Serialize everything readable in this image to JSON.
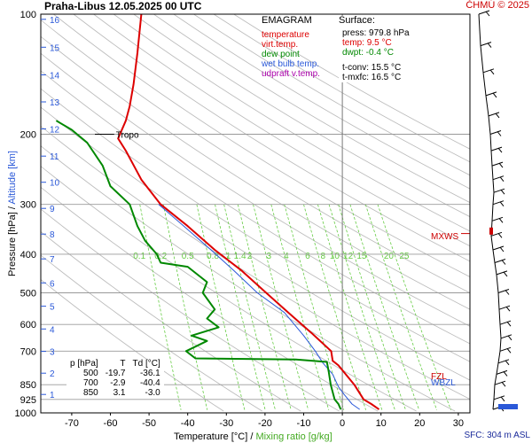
{
  "title": "Praha-Libus    12.05.2025 00 UTC",
  "credit": "ČHMÚ © 2025",
  "legend": {
    "header": "EMAGRAM",
    "items": [
      {
        "label": "temperature",
        "color": "#dd0000"
      },
      {
        "label": "virt.temp.",
        "color": "#dd0000"
      },
      {
        "label": "dew point",
        "color": "#008800"
      },
      {
        "label": "wet bulb temp.",
        "color": "#2a58d8"
      },
      {
        "label": "udpraft v.temp.",
        "color": "#aa00aa"
      }
    ]
  },
  "surface": {
    "header": "Surface:",
    "press": "press: 979.8 hPa",
    "temp": "temp: 9.5 °C",
    "dwpt": "dwpt: -0.4 °C",
    "tconv": "t-conv: 15.5 °C",
    "tmxfc": "t-mxfc: 16.5 °C"
  },
  "table": {
    "header": [
      "p [hPa]",
      "T",
      "Td [°C]"
    ],
    "rows": [
      [
        "500",
        "-19.7",
        "-36.1"
      ],
      [
        "700",
        "-2.9",
        "-40.4"
      ],
      [
        "850",
        "3.1",
        "-3.0"
      ]
    ]
  },
  "axis_labels": {
    "pressure": "Pressure [hPa]",
    "sep": "/",
    "altitude": "Altitude [km]",
    "temperature": "Temperature [°C]",
    "slash": "/",
    "mixing": "Mixing ratio [g/kg]"
  },
  "annotations": {
    "tropo": "Tropo",
    "mxws": "MXWS",
    "fzl": "FZL",
    "wbzl": "WBZL",
    "sfc": "SFC: 304 m ASL"
  },
  "colors": {
    "temperature": "#dd0000",
    "dewpoint": "#008800",
    "wetbulb": "#2a58d8",
    "mixing": "#66cc44",
    "isotherm": "#bbbbbb",
    "grid": "#9a9a9a",
    "altitude": "#2a58d8"
  },
  "chart_data": {
    "type": "line",
    "x_axis": {
      "label": "Temperature [°C]",
      "ticks": [
        -70,
        -60,
        -50,
        -40,
        -30,
        -20,
        -10,
        0,
        10,
        20,
        30
      ],
      "range": [
        -78,
        33
      ]
    },
    "y_axis": {
      "label": "Pressure [hPa]",
      "scale": "log",
      "ticks": [
        100,
        200,
        300,
        400,
        500,
        600,
        700,
        850,
        925,
        1000
      ],
      "range": [
        100,
        1000
      ]
    },
    "altitude_ticks_km": [
      1,
      2,
      3,
      4,
      5,
      6,
      7,
      8,
      9,
      10,
      11,
      12,
      13,
      14,
      15,
      16
    ],
    "altitude_pressures": [
      899,
      795,
      701,
      616,
      540,
      472,
      411,
      356,
      307,
      264,
      227,
      194,
      166,
      142,
      121,
      103
    ],
    "mixing_ratio_labels": [
      "0.1",
      "0.2",
      "0.5",
      "0.8",
      "1",
      "1.4",
      "2",
      "3",
      "4",
      "6",
      "8",
      "10",
      "12",
      "15",
      "20",
      "25"
    ],
    "mixing_ratio_label_x": [
      -52.5,
      -47,
      -40,
      -33.5,
      -29.5,
      -26.5,
      -24,
      -19,
      -14.5,
      -9,
      -5,
      -2,
      1.5,
      5,
      12,
      16
    ],
    "series": [
      {
        "name": "temperature",
        "points": [
          [
            9.5,
            980
          ],
          [
            7.5,
            950
          ],
          [
            5.5,
            925
          ],
          [
            3.1,
            850
          ],
          [
            -1,
            760
          ],
          [
            -2.5,
            740
          ],
          [
            -2.9,
            700
          ],
          [
            -8,
            630
          ],
          [
            -14,
            560
          ],
          [
            -19.7,
            500
          ],
          [
            -26,
            440
          ],
          [
            -33,
            390
          ],
          [
            -40,
            340
          ],
          [
            -47,
            300
          ],
          [
            -52,
            260
          ],
          [
            -56,
            220
          ],
          [
            -58,
            205
          ],
          [
            -56,
            185
          ],
          [
            -55,
            170
          ],
          [
            -54,
            150
          ],
          [
            -53,
            125
          ],
          [
            -52,
            100
          ]
        ]
      },
      {
        "name": "dew point",
        "points": [
          [
            -0.4,
            980
          ],
          [
            -1,
            950
          ],
          [
            -2,
            925
          ],
          [
            -3,
            850
          ],
          [
            -3.5,
            790
          ],
          [
            -4,
            745
          ],
          [
            -12,
            735
          ],
          [
            -38,
            730
          ],
          [
            -40.4,
            700
          ],
          [
            -35,
            660
          ],
          [
            -39,
            640
          ],
          [
            -32,
            610
          ],
          [
            -35,
            580
          ],
          [
            -33,
            550
          ],
          [
            -36.1,
            500
          ],
          [
            -35,
            470
          ],
          [
            -40,
            430
          ],
          [
            -47,
            420
          ],
          [
            -48,
            400
          ],
          [
            -51,
            370
          ],
          [
            -53,
            340
          ],
          [
            -55,
            300
          ],
          [
            -60,
            270
          ],
          [
            -62,
            240
          ],
          [
            -66,
            210
          ],
          [
            -70,
            195
          ],
          [
            -74,
            185
          ]
        ]
      },
      {
        "name": "wet bulb temp.",
        "points": [
          [
            4.5,
            980
          ],
          [
            2.5,
            950
          ],
          [
            0.5,
            900
          ],
          [
            -1,
            860
          ],
          [
            -2.5,
            800
          ],
          [
            -5,
            750
          ],
          [
            -7,
            700
          ],
          [
            -10,
            640
          ],
          [
            -15,
            560
          ],
          [
            -22,
            500
          ],
          [
            -28,
            440
          ],
          [
            -34,
            390
          ],
          [
            -41,
            340
          ],
          [
            -47.5,
            300
          ]
        ]
      }
    ],
    "tropopause_hPa": 200,
    "mxws_hPa": 355
  }
}
